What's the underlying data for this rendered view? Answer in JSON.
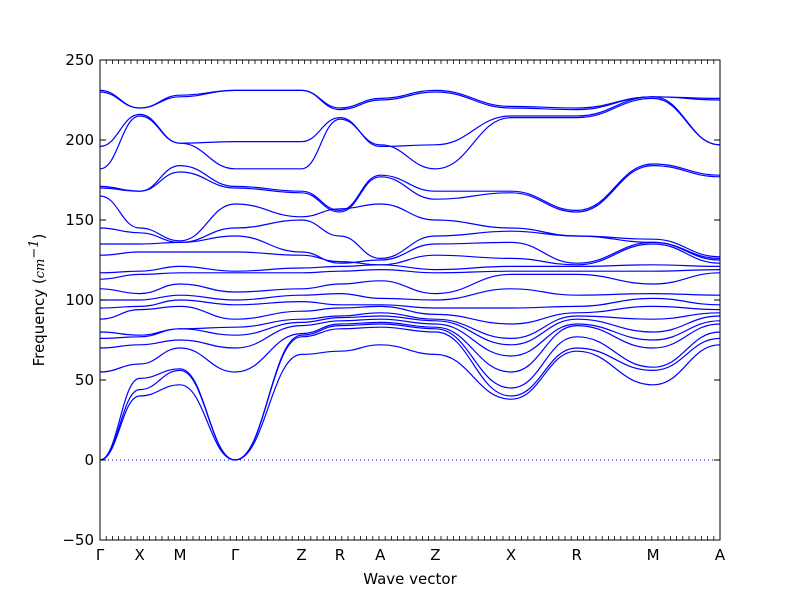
{
  "chart_data": {
    "type": "line",
    "title": "",
    "xlabel": "Wave vector",
    "ylabel_text": "Frequency (",
    "ylabel_unit": "cm",
    "ylabel_exp": "−1",
    "ylabel_close": ")",
    "ylim": [
      -50,
      250
    ],
    "yticks": [
      -50,
      0,
      50,
      100,
      150,
      200,
      250
    ],
    "ytick_labels": [
      "−50",
      "0",
      "50",
      "100",
      "150",
      "200",
      "250"
    ],
    "xlim": [
      0,
      1
    ],
    "high_symmetry_points": [
      {
        "label": "Γ",
        "x": 0.0
      },
      {
        "label": "X",
        "x": 0.064
      },
      {
        "label": "M",
        "x": 0.129
      },
      {
        "label": "Γ",
        "x": 0.218
      },
      {
        "label": "Z",
        "x": 0.325
      },
      {
        "label": "R",
        "x": 0.387
      },
      {
        "label": "A",
        "x": 0.452
      },
      {
        "label": "Z",
        "x": 0.541
      },
      {
        "label": "X",
        "x": 0.663
      },
      {
        "label": "R",
        "x": 0.769
      },
      {
        "label": "M",
        "x": 0.892
      },
      {
        "label": "A",
        "x": 1.0
      }
    ],
    "zero_line": true,
    "line_color": "#0000ff",
    "zero_line_color": "#0000ff",
    "series": [
      {
        "x": [
          0,
          0.064,
          0.129,
          0.218,
          0.325,
          0.387,
          0.452,
          0.541,
          0.663,
          0.769,
          0.892,
          1.0
        ],
        "y": [
          0,
          40,
          47,
          0,
          66,
          68,
          72,
          66,
          38,
          68,
          47,
          72
        ]
      },
      {
        "x": [
          0,
          0.064,
          0.129,
          0.218,
          0.325,
          0.387,
          0.452,
          0.541,
          0.663,
          0.769,
          0.892,
          1.0
        ],
        "y": [
          0,
          44,
          56,
          0,
          77,
          82,
          83,
          80,
          40,
          70,
          56,
          76
        ]
      },
      {
        "x": [
          0,
          0.064,
          0.129,
          0.218,
          0.325,
          0.387,
          0.452,
          0.541,
          0.663,
          0.769,
          0.892,
          1.0
        ],
        "y": [
          0,
          51,
          57,
          0,
          78,
          84,
          85,
          82,
          45,
          77,
          58,
          80
        ]
      },
      {
        "x": [
          0,
          0.064,
          0.129,
          0.218,
          0.325,
          0.387,
          0.452,
          0.541,
          0.663,
          0.769,
          0.892,
          1.0
        ],
        "y": [
          55,
          60,
          70,
          55,
          79,
          85,
          86,
          83,
          55,
          84,
          70,
          85
        ]
      },
      {
        "x": [
          0,
          0.064,
          0.129,
          0.218,
          0.325,
          0.387,
          0.452,
          0.541,
          0.663,
          0.769,
          0.892,
          1.0
        ],
        "y": [
          70,
          72,
          75,
          70,
          84,
          87,
          88,
          85,
          65,
          85,
          75,
          87
        ]
      },
      {
        "x": [
          0,
          0.064,
          0.129,
          0.218,
          0.325,
          0.387,
          0.452,
          0.541,
          0.663,
          0.769,
          0.892,
          1.0
        ],
        "y": [
          76,
          77,
          82,
          78,
          86,
          89,
          90,
          87,
          72,
          88,
          80,
          90
        ]
      },
      {
        "x": [
          0,
          0.064,
          0.129,
          0.218,
          0.325,
          0.387,
          0.452,
          0.541,
          0.663,
          0.769,
          0.892,
          1.0
        ],
        "y": [
          80,
          78,
          82,
          83,
          88,
          90,
          92,
          88,
          76,
          90,
          88,
          92
        ]
      },
      {
        "x": [
          0,
          0.064,
          0.129,
          0.218,
          0.325,
          0.387,
          0.452,
          0.541,
          0.663,
          0.769,
          0.892,
          1.0
        ],
        "y": [
          88,
          94,
          96,
          88,
          93,
          95,
          96,
          91,
          85,
          92,
          96,
          94
        ]
      },
      {
        "x": [
          0,
          0.064,
          0.129,
          0.218,
          0.325,
          0.387,
          0.452,
          0.541,
          0.663,
          0.769,
          0.892,
          1.0
        ],
        "y": [
          95,
          96,
          100,
          97,
          99,
          97,
          97,
          95,
          95,
          96,
          101,
          97
        ]
      },
      {
        "x": [
          0,
          0.064,
          0.129,
          0.218,
          0.325,
          0.387,
          0.452,
          0.541,
          0.663,
          0.769,
          0.892,
          1.0
        ],
        "y": [
          100,
          100,
          103,
          100,
          103,
          104,
          101,
          100,
          107,
          103,
          104,
          103
        ]
      },
      {
        "x": [
          0,
          0.064,
          0.129,
          0.218,
          0.325,
          0.387,
          0.452,
          0.541,
          0.663,
          0.769,
          0.892,
          1.0
        ],
        "y": [
          107,
          104,
          110,
          105,
          107,
          110,
          112,
          104,
          116,
          116,
          110,
          117
        ]
      },
      {
        "x": [
          0,
          0.064,
          0.129,
          0.218,
          0.325,
          0.387,
          0.452,
          0.541,
          0.663,
          0.769,
          0.892,
          1.0
        ],
        "y": [
          113,
          116,
          117,
          117,
          117,
          118,
          119,
          117,
          118,
          118,
          118,
          119
        ]
      },
      {
        "x": [
          0,
          0.064,
          0.129,
          0.218,
          0.325,
          0.387,
          0.452,
          0.541,
          0.663,
          0.769,
          0.892,
          1.0
        ],
        "y": [
          117,
          118,
          121,
          118,
          120,
          121,
          122,
          119,
          121,
          121,
          122,
          121
        ]
      },
      {
        "x": [
          0,
          0.064,
          0.129,
          0.218,
          0.325,
          0.387,
          0.452,
          0.541,
          0.663,
          0.769,
          0.892,
          1.0
        ],
        "y": [
          128,
          130,
          130,
          130,
          128,
          124,
          122,
          128,
          126,
          122,
          135,
          123
        ]
      },
      {
        "x": [
          0,
          0.064,
          0.129,
          0.218,
          0.325,
          0.387,
          0.452,
          0.541,
          0.663,
          0.769,
          0.892,
          1.0
        ],
        "y": [
          135,
          135,
          136,
          140,
          130,
          123,
          125,
          135,
          136,
          123,
          136,
          125
        ]
      },
      {
        "x": [
          0,
          0.064,
          0.129,
          0.218,
          0.325,
          0.387,
          0.452,
          0.541,
          0.663,
          0.769,
          0.892,
          1.0
        ],
        "y": [
          145,
          142,
          136,
          145,
          150,
          140,
          126,
          140,
          143,
          140,
          136,
          126
        ]
      },
      {
        "x": [
          0,
          0.064,
          0.129,
          0.218,
          0.325,
          0.387,
          0.452,
          0.541,
          0.663,
          0.769,
          0.892,
          1.0
        ],
        "y": [
          165,
          145,
          137,
          160,
          152,
          157,
          160,
          150,
          145,
          140,
          138,
          127
        ]
      },
      {
        "x": [
          0,
          0.064,
          0.129,
          0.218,
          0.325,
          0.387,
          0.452,
          0.541,
          0.663,
          0.769,
          0.892,
          1.0
        ],
        "y": [
          170,
          168,
          180,
          170,
          167,
          155,
          177,
          163,
          167,
          155,
          184,
          177
        ]
      },
      {
        "x": [
          0,
          0.064,
          0.129,
          0.218,
          0.325,
          0.387,
          0.452,
          0.541,
          0.663,
          0.769,
          0.892,
          1.0
        ],
        "y": [
          171,
          168,
          184,
          171,
          168,
          156,
          178,
          168,
          168,
          156,
          185,
          178
        ]
      },
      {
        "x": [
          0,
          0.064,
          0.129,
          0.218,
          0.325,
          0.387,
          0.452,
          0.541,
          0.663,
          0.769,
          0.892,
          1.0
        ],
        "y": [
          182,
          215,
          198,
          182,
          182,
          213,
          197,
          182,
          214,
          214,
          226,
          197
        ]
      },
      {
        "x": [
          0,
          0.064,
          0.129,
          0.218,
          0.325,
          0.387,
          0.452,
          0.541,
          0.663,
          0.769,
          0.892,
          1.0
        ],
        "y": [
          196,
          216,
          198,
          199,
          199,
          214,
          196,
          197,
          215,
          215,
          227,
          197
        ]
      },
      {
        "x": [
          0,
          0.064,
          0.129,
          0.218,
          0.325,
          0.387,
          0.452,
          0.541,
          0.663,
          0.769,
          0.892,
          1.0
        ],
        "y": [
          230,
          220,
          227,
          231,
          231,
          219,
          225,
          230,
          220,
          219,
          227,
          225
        ]
      },
      {
        "x": [
          0,
          0.064,
          0.129,
          0.218,
          0.325,
          0.387,
          0.452,
          0.541,
          0.663,
          0.769,
          0.892,
          1.0
        ],
        "y": [
          231,
          220,
          228,
          231,
          231,
          220,
          226,
          231,
          221,
          220,
          227,
          226
        ]
      }
    ]
  }
}
